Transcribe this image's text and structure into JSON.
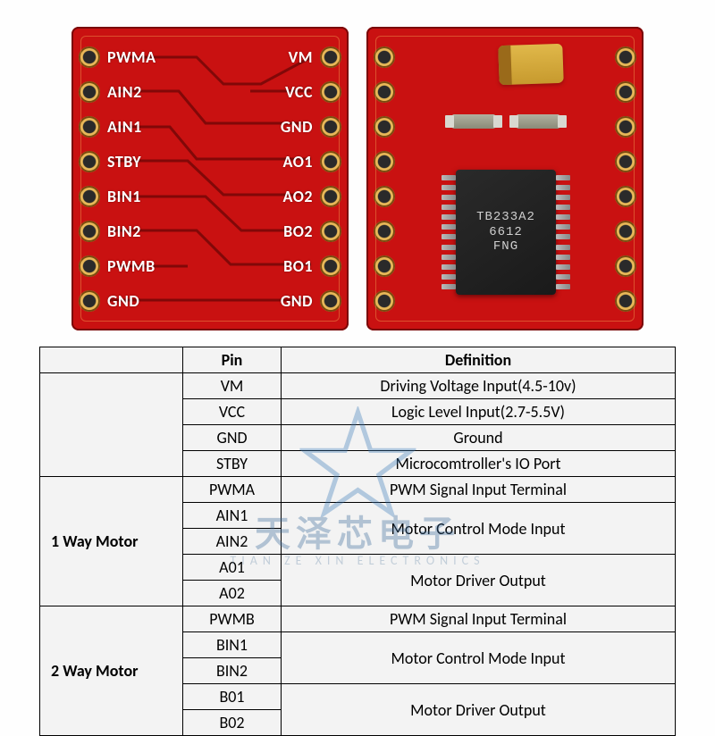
{
  "board": {
    "pcb_color": "#c91111",
    "silkscreen_color": "#ffffff",
    "pad_color": "#e8b858",
    "left_pins": [
      "PWMA",
      "AIN2",
      "AIN1",
      "STBY",
      "BIN1",
      "BIN2",
      "PWMB",
      "GND"
    ],
    "right_pins": [
      "VM",
      "VCC",
      "GND",
      "AO1",
      "AO2",
      "BO2",
      "BO1",
      "GND"
    ],
    "ic_marking": [
      "TB233A2",
      "6612",
      "FNG"
    ],
    "ic_pins_per_side": 12
  },
  "table": {
    "headers": {
      "group": "",
      "pin": "Pin",
      "def": "Definition"
    },
    "groups": [
      {
        "label": "",
        "rows": [
          {
            "pin": "VM",
            "def": "Driving Voltage Input(4.5-10v)",
            "span": 1
          },
          {
            "pin": "VCC",
            "def": "Logic Level Input(2.7-5.5V)",
            "span": 1
          },
          {
            "pin": "GND",
            "def": "Ground",
            "span": 1
          },
          {
            "pin": "STBY",
            "def": "Microcomtroller's IO Port",
            "span": 1
          }
        ]
      },
      {
        "label": "1 Way Motor",
        "rows": [
          {
            "pin": "PWMA",
            "def": "PWM Signal Input Terminal",
            "span": 1
          },
          {
            "pin": "AIN1",
            "def": "Motor Control Mode Input",
            "span": 2
          },
          {
            "pin": "AIN2"
          },
          {
            "pin": "A01",
            "def": "Motor Driver Output",
            "span": 2
          },
          {
            "pin": "A02"
          }
        ]
      },
      {
        "label": "2 Way Motor",
        "rows": [
          {
            "pin": "PWMB",
            "def": "PWM Signal Input Terminal",
            "span": 1
          },
          {
            "pin": "BIN1",
            "def": "Motor Control Mode Input",
            "span": 2
          },
          {
            "pin": "BIN2"
          },
          {
            "pin": "B01",
            "def": "Motor Driver Output",
            "span": 2
          },
          {
            "pin": "B02"
          }
        ]
      }
    ]
  },
  "watermark": {
    "cn": "天泽芯电子",
    "en": "TIAN ZE XIN ELECTRONICS",
    "star_color": "#3a7ab8"
  }
}
